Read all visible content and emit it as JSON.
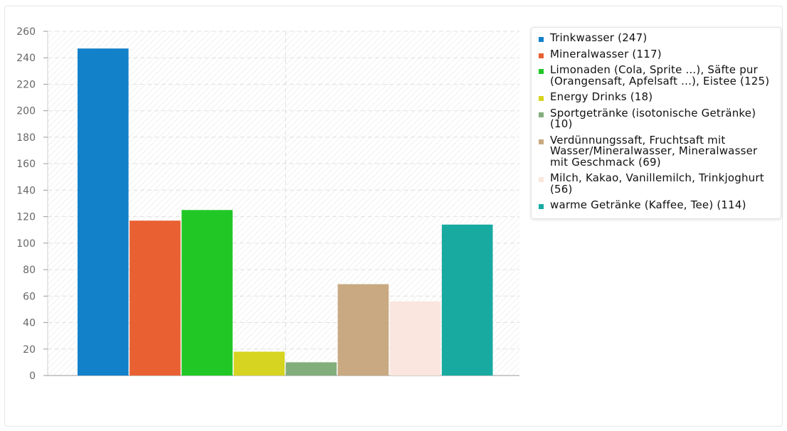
{
  "chart_data": {
    "type": "bar",
    "title": "",
    "xlabel": "",
    "ylabel": "",
    "ylim": [
      0,
      260
    ],
    "yticks": [
      0,
      20,
      40,
      60,
      80,
      100,
      120,
      140,
      160,
      180,
      200,
      220,
      240,
      260
    ],
    "grid": true,
    "legend_position": "right",
    "series": [
      {
        "name": "Trinkwasser (247)",
        "value": 247,
        "color": "#1380ca"
      },
      {
        "name": "Mineralwasser (117)",
        "value": 117,
        "color": "#e96133"
      },
      {
        "name": "Limonaden (Cola, Sprite ...), Säfte pur (Orangensaft, Apfelsaft ...), Eistee (125)",
        "value": 125,
        "color": "#21c725"
      },
      {
        "name": "Energy Drinks (18)",
        "value": 18,
        "color": "#d6d420"
      },
      {
        "name": "Sportgetränke (isotonische Getränke) (10)",
        "value": 10,
        "color": "#82ae7c"
      },
      {
        "name": "Verdünnungssaft, Fruchtsaft mit Wasser/Mineralwasser, Mineralwasser mit Geschmack (69)",
        "value": 69,
        "color": "#c8a981"
      },
      {
        "name": "Milch, Kakao, Vanillemilch, Trinkjoghurt (56)",
        "value": 56,
        "color": "#fae6de"
      },
      {
        "name": "warme Getränke (Kaffee, Tee) (114)",
        "value": 114,
        "color": "#18aaa1"
      }
    ]
  }
}
